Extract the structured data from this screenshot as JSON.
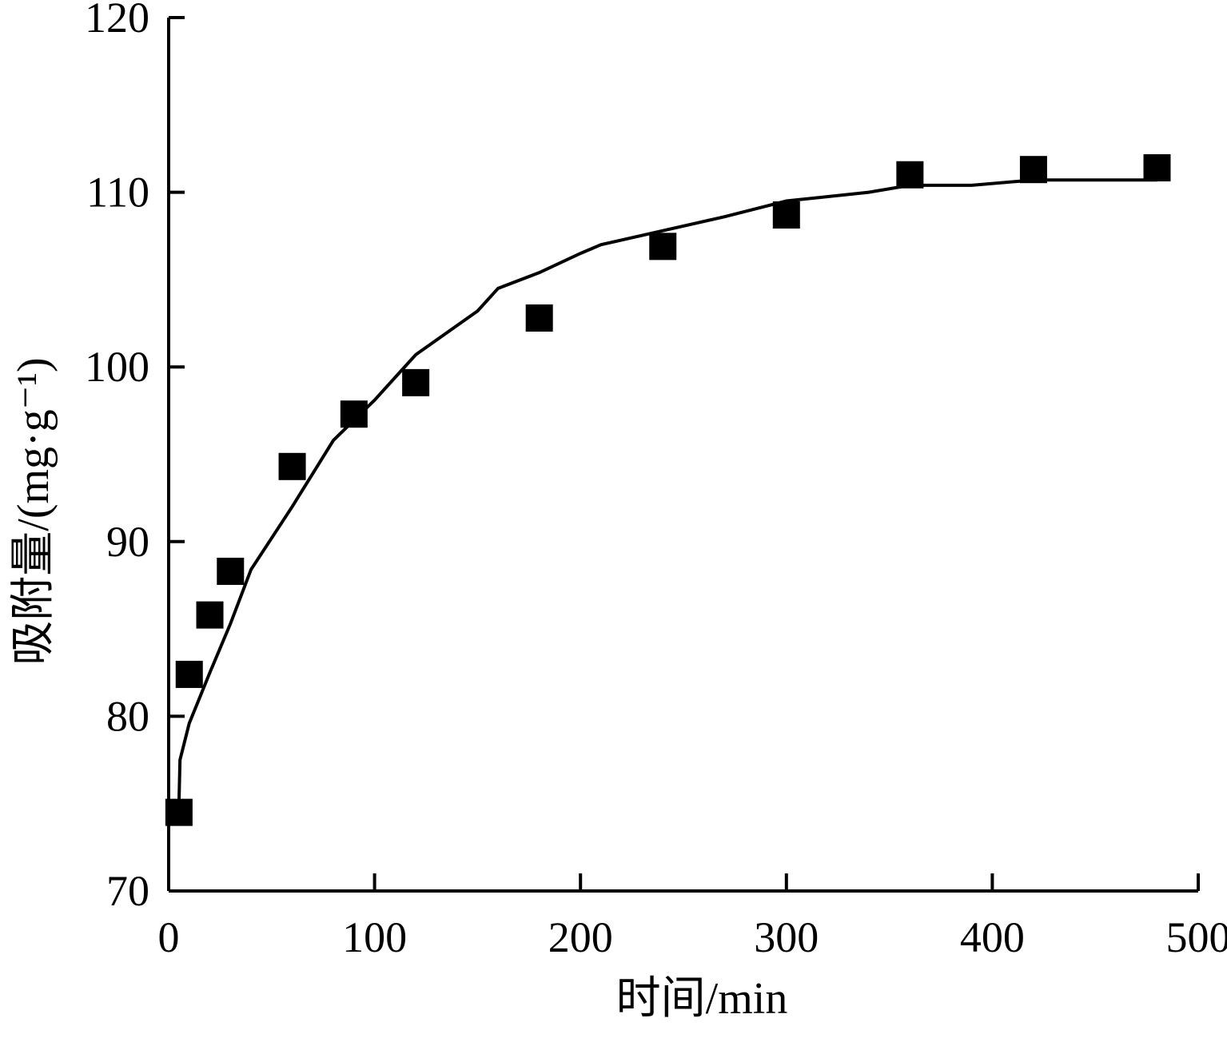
{
  "chart_data": {
    "type": "scatter",
    "x_label": "时间/min",
    "y_label": "吸附量/(mg·g⁻¹)",
    "xlim": [
      0,
      500
    ],
    "xticks": [
      0,
      100,
      200,
      300,
      400,
      500
    ],
    "ylim": [
      70,
      120
    ],
    "yticks": [
      70,
      80,
      90,
      100,
      110,
      120
    ],
    "series": [
      {
        "color": "#000000",
        "marker": "square",
        "x": [
          5,
          10,
          20,
          30,
          60,
          90,
          120,
          180,
          240,
          300,
          360,
          420,
          480
        ],
        "values": [
          74.5,
          82.4,
          85.8,
          88.3,
          94.3,
          97.3,
          99.1,
          102.8,
          106.9,
          108.7,
          111.0,
          111.3,
          111.4
        ]
      },
      {
        "color": "#000000",
        "marker": "line",
        "x": [
          5,
          5.5,
          10,
          20,
          30,
          40,
          60,
          80,
          100,
          120,
          150,
          160,
          180,
          200,
          210,
          240,
          270,
          300,
          340,
          360,
          390,
          420,
          480
        ],
        "values": [
          75.0,
          77.5,
          79.6,
          82.5,
          85.3,
          88.4,
          92.0,
          95.8,
          98.1,
          100.7,
          103.2,
          104.5,
          105.4,
          106.5,
          107.0,
          107.8,
          108.6,
          109.5,
          110.0,
          110.4,
          110.4,
          110.7,
          110.7
        ]
      }
    ]
  }
}
